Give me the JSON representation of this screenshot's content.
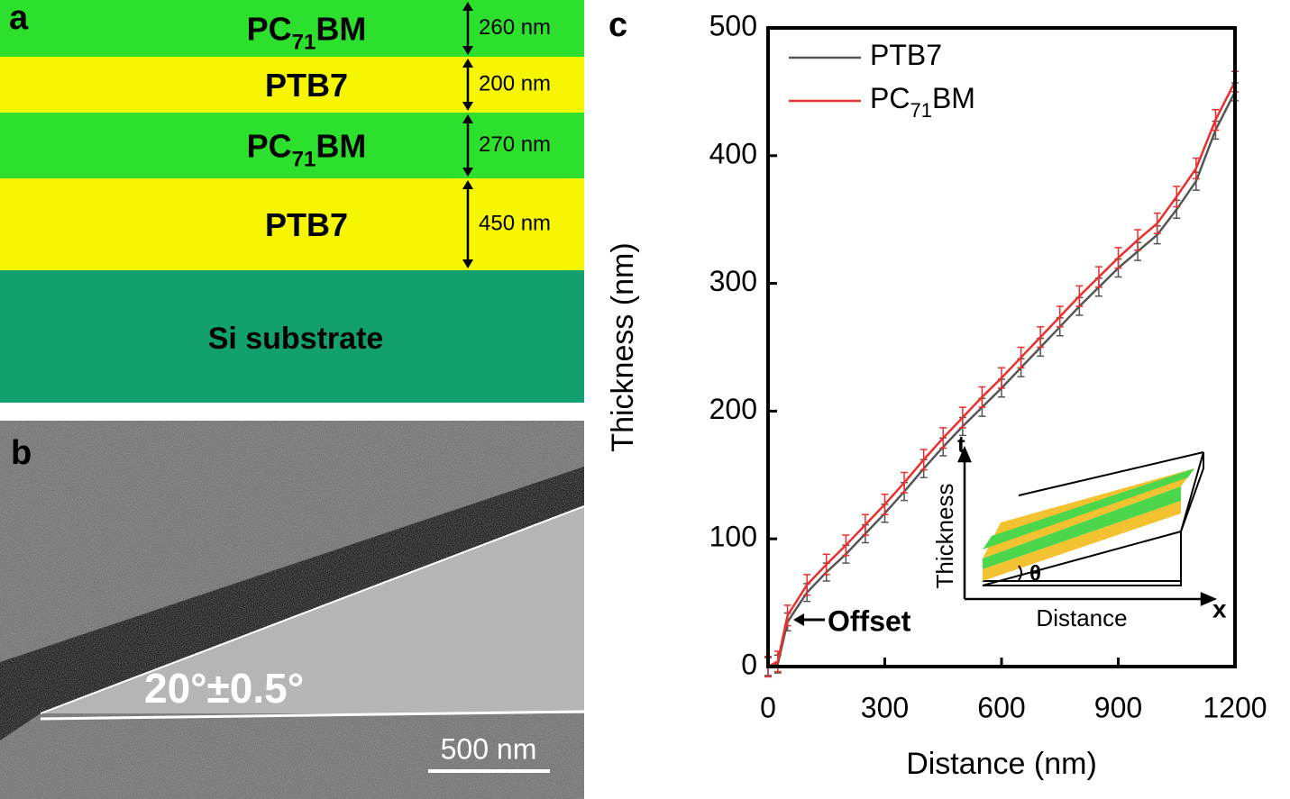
{
  "panel_a": {
    "label": "a",
    "layers": [
      {
        "name_parts": [
          "PC",
          "71",
          "BM"
        ],
        "thickness": "260 nm"
      },
      {
        "name_parts": [
          "PTB7"
        ],
        "thickness": "200 nm"
      },
      {
        "name_parts": [
          "PC",
          "71",
          "BM"
        ],
        "thickness": "270 nm"
      },
      {
        "name_parts": [
          "PTB7"
        ],
        "thickness": "450 nm"
      }
    ],
    "substrate": "Si substrate"
  },
  "panel_b": {
    "label": "b",
    "angle": "20°±0.5°",
    "scale_bar": "500 nm"
  },
  "chart_data": {
    "type": "line",
    "label": "c",
    "x_label": "Distance (nm)",
    "y_label": "Thickness (nm)",
    "x": [
      0,
      25,
      50,
      100,
      150,
      200,
      250,
      300,
      350,
      400,
      450,
      500,
      550,
      600,
      650,
      700,
      750,
      800,
      850,
      900,
      950,
      1000,
      1050,
      1100,
      1150,
      1200
    ],
    "series": [
      {
        "name_parts": [
          "PTB7"
        ],
        "color": "#555555",
        "error": 7,
        "values": [
          0,
          2,
          35,
          58,
          74,
          88,
          104,
          120,
          137,
          155,
          172,
          188,
          203,
          218,
          234,
          250,
          266,
          282,
          297,
          312,
          325,
          338,
          358,
          380,
          420,
          450
        ]
      },
      {
        "name_parts": [
          "PC",
          "71",
          "BM"
        ],
        "color": "#e8302e",
        "error": 8,
        "values": [
          0,
          4,
          40,
          64,
          80,
          95,
          111,
          127,
          144,
          162,
          179,
          195,
          211,
          226,
          242,
          258,
          274,
          290,
          305,
          320,
          334,
          347,
          368,
          390,
          428,
          458
        ]
      }
    ],
    "xlim": [
      0,
      1200
    ],
    "ylim": [
      0,
      500
    ],
    "xticks": [
      0,
      300,
      600,
      900,
      1200
    ],
    "yticks": [
      0,
      100,
      200,
      300,
      400,
      500
    ],
    "legend": "upper left",
    "annotation": "Offset",
    "inset": {
      "y_axis": "t",
      "y_label": "Thickness",
      "x_axis": "x",
      "x_label": "Distance",
      "angle": "θ"
    }
  }
}
